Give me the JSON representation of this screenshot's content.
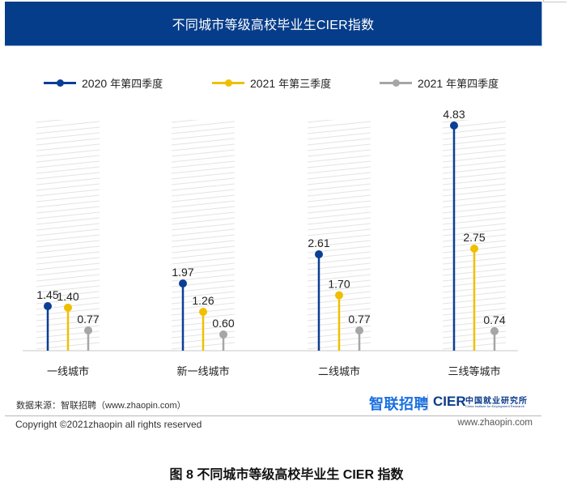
{
  "header": {
    "title": "不同城市等级高校毕业生CIER指数"
  },
  "legend": [
    {
      "year": "2020",
      "label": "年第四季度",
      "color": "#0b3f95"
    },
    {
      "year": "2021",
      "label": "年第三季度",
      "color": "#f0c000"
    },
    {
      "year": "2021",
      "label": "年第四季度",
      "color": "#a6a6a6"
    }
  ],
  "chart_data": {
    "type": "bar",
    "style": "lollipop",
    "title": "不同城市等级高校毕业生CIER指数",
    "xlabel": "",
    "ylabel": "",
    "categories": [
      "一线城市",
      "新一线城市",
      "二线城市",
      "三线等城市"
    ],
    "series": [
      {
        "name": "2020 年第四季度",
        "color": "#0b3f95",
        "values": [
          1.45,
          1.97,
          2.61,
          4.83
        ]
      },
      {
        "name": "2021 年第三季度",
        "color": "#f0c000",
        "values": [
          1.4,
          1.26,
          1.7,
          2.75
        ]
      },
      {
        "name": "2021 年第四季度",
        "color": "#a6a6a6",
        "values": [
          0.77,
          0.6,
          0.77,
          0.74
        ]
      }
    ],
    "grid": false,
    "legend_position": "top"
  },
  "footer": {
    "source": "数据来源：智联招聘（www.zhaopin.com）",
    "copyright": "Copyright ©2021zhaopin all rights reserved",
    "url": "www.zhaopin.com",
    "logo_zhaopin": "智联招聘",
    "logo_cier": "CIER",
    "logo_cier_cn": "中国就业研究所",
    "logo_cier_en": "China Institute for Employment Research"
  },
  "caption": "图 8 不同城市等级高校毕业生 CIER 指数"
}
